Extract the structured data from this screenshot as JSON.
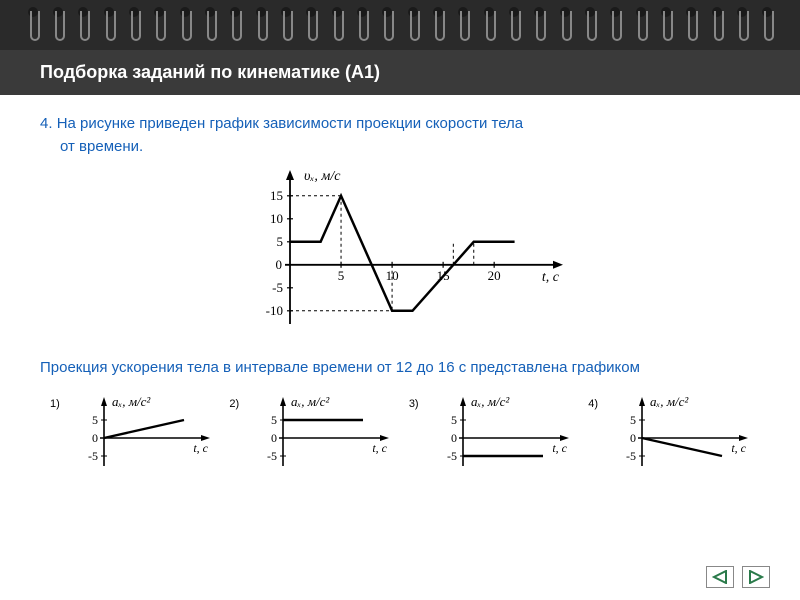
{
  "notebook": {
    "ring_count": 30,
    "top_bg": "#2a2a2a",
    "ring_color": "#888"
  },
  "title": "Подборка заданий по кинематике (А1)",
  "problem_number": "4.",
  "problem_line1": "На рисунке приведен график зависимости проекции скорости тела",
  "problem_line2": "от времени.",
  "question": "Проекция ускорения тела в интервале времени от 12 до 16 с представлена графиком",
  "text_color": "#1560b8",
  "main_chart": {
    "type": "line",
    "y_label": "υₓ, м/с",
    "x_label": "t, с",
    "x_range": [
      0,
      24
    ],
    "y_range": [
      -12,
      18
    ],
    "x_ticks": [
      5,
      10,
      15,
      20
    ],
    "y_ticks": [
      -10,
      -5,
      0,
      5,
      10,
      15
    ],
    "series": [
      {
        "x": 0,
        "y": 5
      },
      {
        "x": 3,
        "y": 5
      },
      {
        "x": 5,
        "y": 15
      },
      {
        "x": 10,
        "y": -10
      },
      {
        "x": 12,
        "y": -10
      },
      {
        "x": 16,
        "y": 0
      },
      {
        "x": 18,
        "y": 5
      },
      {
        "x": 22,
        "y": 5
      }
    ],
    "dashed_guides": [
      {
        "from": [
          5,
          0
        ],
        "to": [
          5,
          15
        ]
      },
      {
        "from": [
          0,
          15
        ],
        "to": [
          5,
          15
        ]
      },
      {
        "from": [
          10,
          0
        ],
        "to": [
          10,
          -10
        ]
      },
      {
        "from": [
          0,
          -10
        ],
        "to": [
          10,
          -10
        ]
      },
      {
        "from": [
          16,
          0
        ],
        "to": [
          16,
          5
        ]
      },
      {
        "from": [
          18,
          0
        ],
        "to": [
          18,
          5
        ]
      }
    ],
    "line_color": "#000000",
    "line_width": 2.5,
    "axis_color": "#000000",
    "tick_fontsize": 13
  },
  "options": [
    {
      "num": "1)",
      "type": "line",
      "y_label": "aₓ, м/с²",
      "x_label": "t, с",
      "y_ticks": [
        -5,
        0,
        5
      ],
      "shape": "ramp_up",
      "points": [
        {
          "x": 0,
          "y": 0
        },
        {
          "x": 30,
          "y": 5
        }
      ],
      "line_color": "#000000"
    },
    {
      "num": "2)",
      "type": "line",
      "y_label": "aₓ, м/с²",
      "x_label": "t, с",
      "y_ticks": [
        -5,
        0,
        5
      ],
      "shape": "const_pos",
      "points": [
        {
          "x": 0,
          "y": 5
        },
        {
          "x": 30,
          "y": 5
        }
      ],
      "line_color": "#000000"
    },
    {
      "num": "3)",
      "type": "line",
      "y_label": "aₓ, м/с²",
      "x_label": "t, с",
      "y_ticks": [
        -5,
        0,
        5
      ],
      "shape": "const_neg",
      "points": [
        {
          "x": 0,
          "y": -5
        },
        {
          "x": 30,
          "y": -5
        }
      ],
      "line_color": "#000000"
    },
    {
      "num": "4)",
      "type": "line",
      "y_label": "aₓ, м/с²",
      "x_label": "t, с",
      "y_ticks": [
        -5,
        0,
        5
      ],
      "shape": "ramp_down",
      "points": [
        {
          "x": 0,
          "y": 0
        },
        {
          "x": 30,
          "y": -5
        }
      ],
      "line_color": "#000000"
    }
  ],
  "nav": {
    "prev": "◁",
    "next": "▷",
    "arrow_color": "#2a7a4a"
  }
}
